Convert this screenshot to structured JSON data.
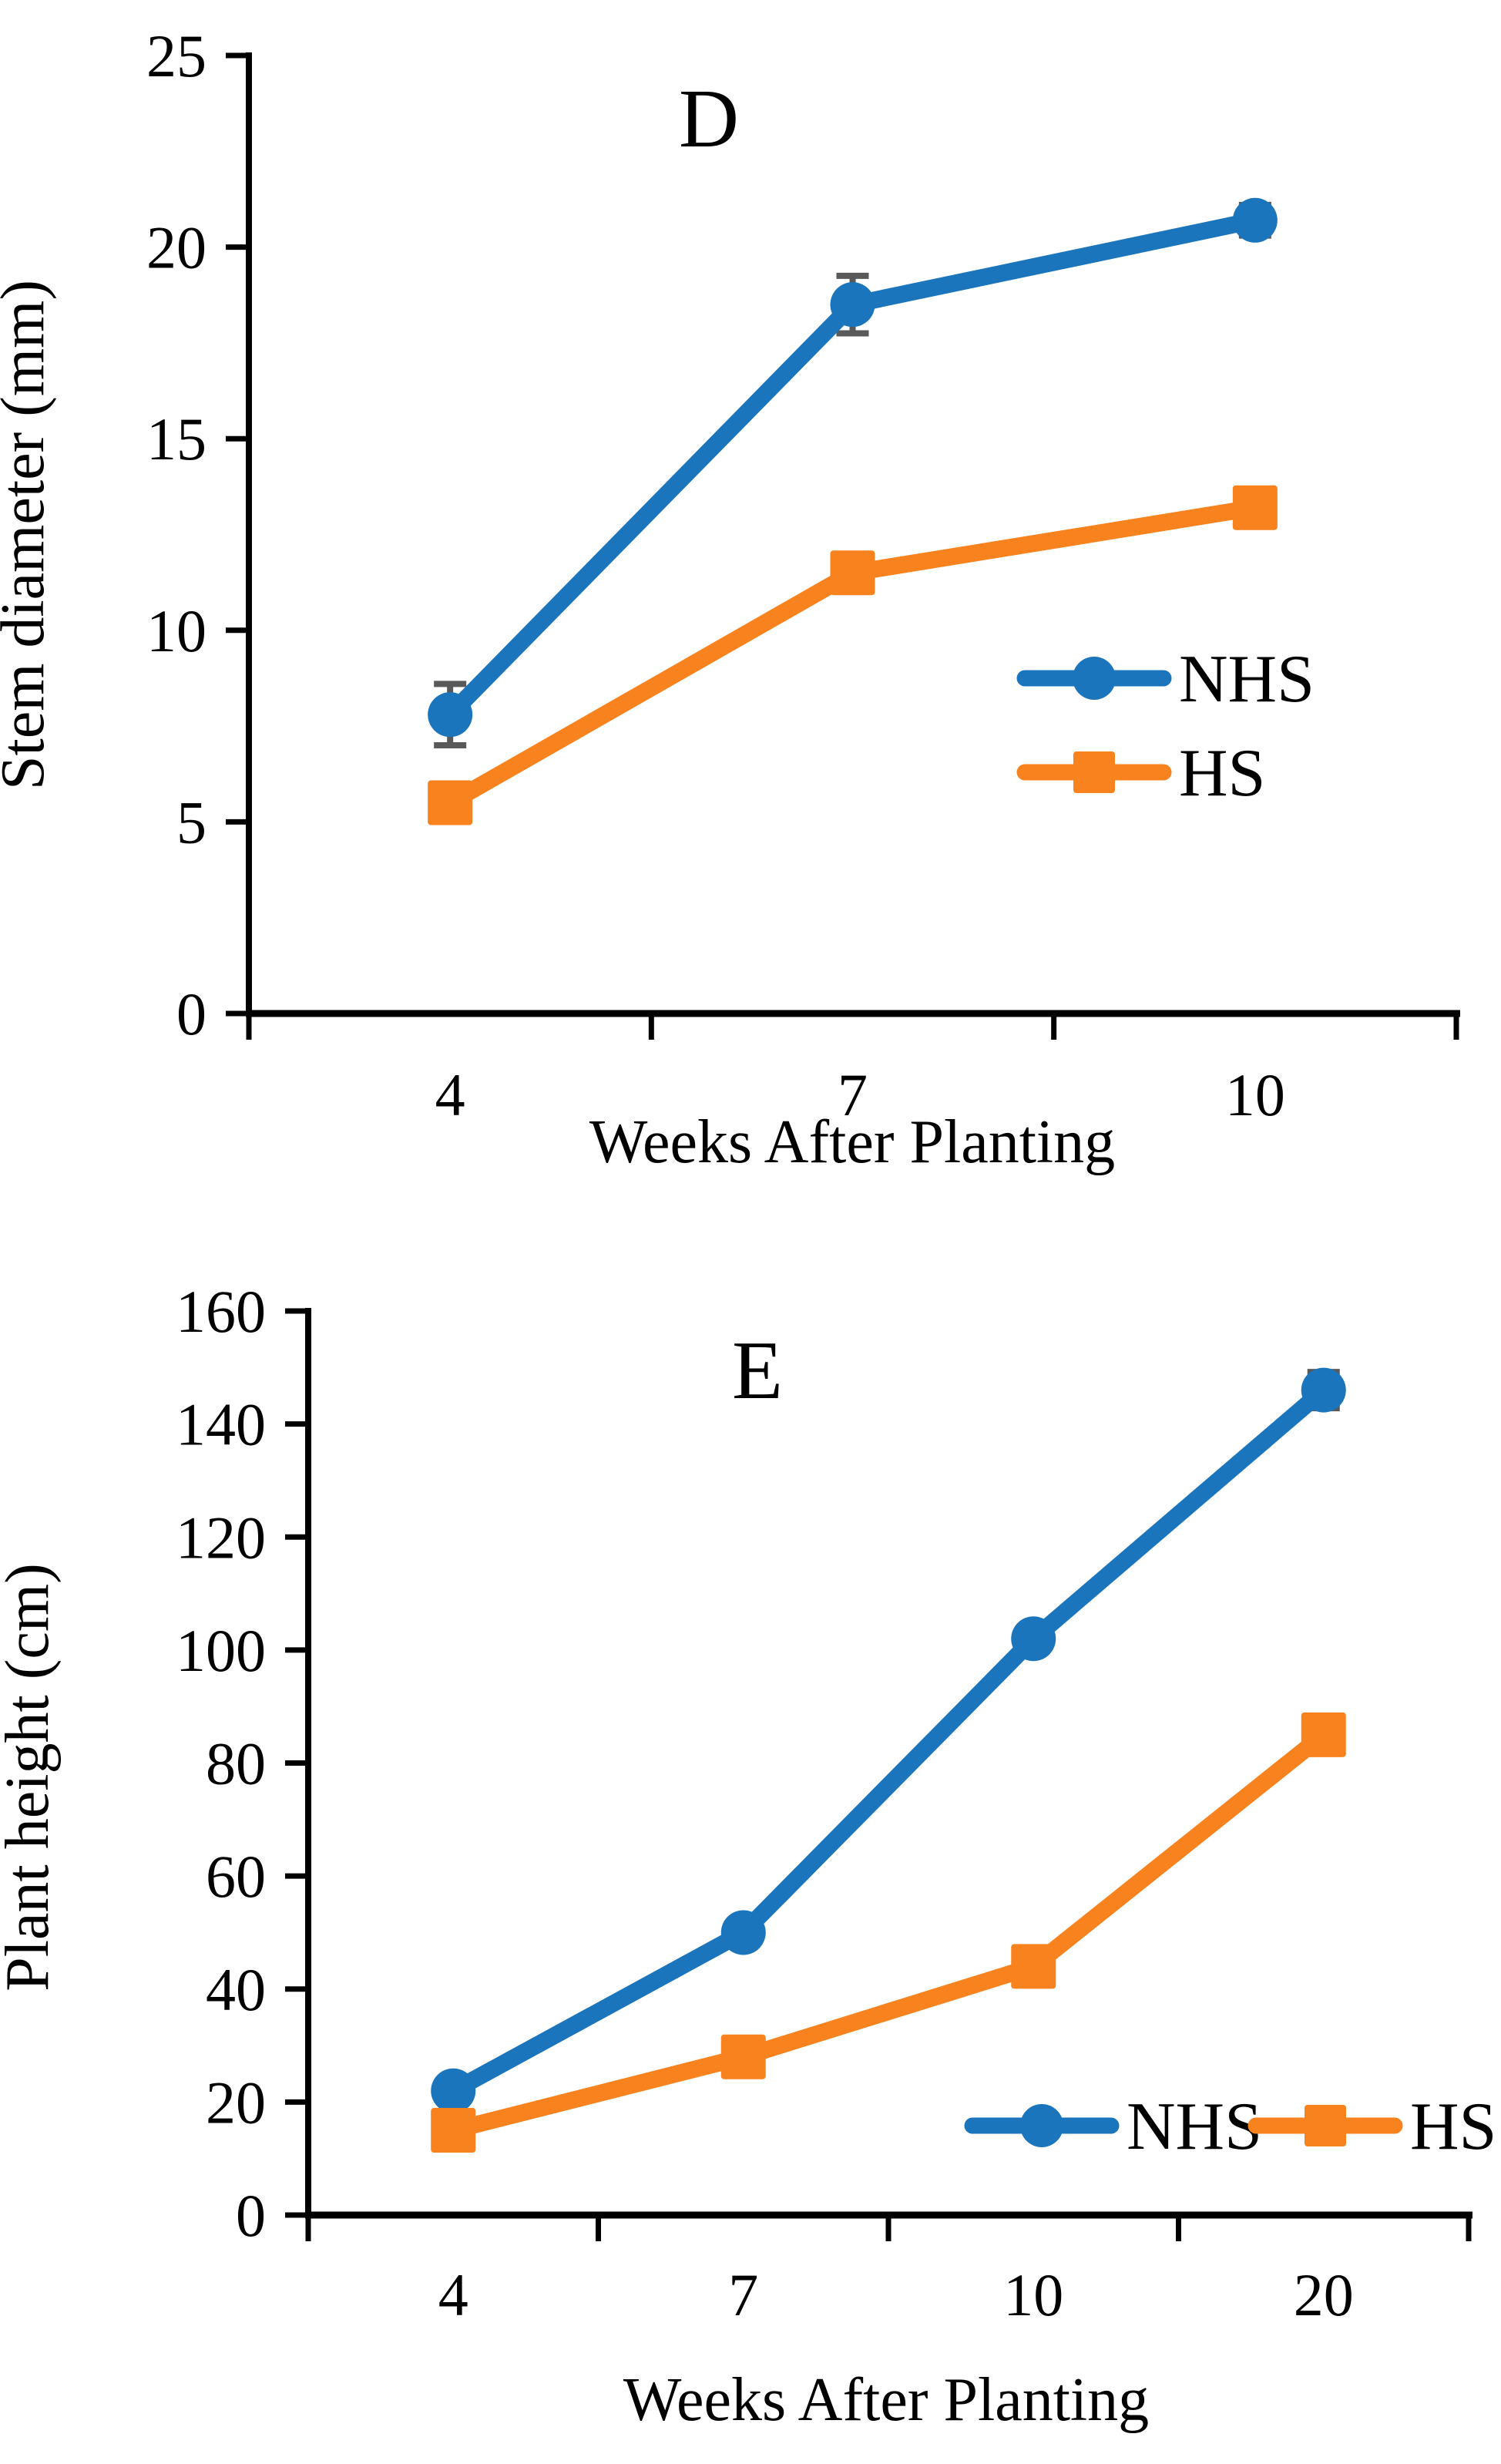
{
  "figure": {
    "panel_d_letter": "D",
    "panel_e_letter": "E"
  },
  "colors": {
    "nhs": "#1B75BC",
    "hs": "#F8821D",
    "error_bar": "#595959",
    "axis": "#000000",
    "background": "#FFFFFF"
  },
  "chart_data": [
    {
      "id": "D",
      "type": "line",
      "title": "D",
      "xlabel": "Weeks After Planting",
      "ylabel": "Stem diameter (mm)",
      "categories": [
        "4",
        "7",
        "10"
      ],
      "ylim": [
        0,
        25
      ],
      "ytick_step": 5,
      "yticks": [
        0,
        5,
        10,
        15,
        20,
        25
      ],
      "grid": false,
      "legend_position": "inside-right-middle",
      "legend_orientation": "vertical",
      "series": [
        {
          "name": "NHS",
          "marker": "circle",
          "color_key": "nhs",
          "values": [
            7.8,
            18.5,
            20.7
          ],
          "errors": [
            0.8,
            0.75,
            0.4
          ]
        },
        {
          "name": "HS",
          "marker": "square",
          "color_key": "hs",
          "values": [
            5.5,
            11.5,
            13.2
          ],
          "errors": [
            0,
            0,
            0
          ]
        }
      ]
    },
    {
      "id": "E",
      "type": "line",
      "title": "E",
      "xlabel": "Weeks After Planting",
      "ylabel": "Plant height (cm)",
      "categories": [
        "4",
        "7",
        "10",
        "20"
      ],
      "ylim": [
        0,
        160
      ],
      "ytick_step": 20,
      "yticks": [
        0,
        20,
        40,
        60,
        80,
        100,
        120,
        140,
        160
      ],
      "grid": false,
      "legend_position": "inside-bottom-right",
      "legend_orientation": "horizontal",
      "series": [
        {
          "name": "NHS",
          "marker": "circle",
          "color_key": "nhs",
          "values": [
            22,
            50,
            102,
            146
          ],
          "errors": [
            0,
            0,
            0,
            3.2
          ]
        },
        {
          "name": "HS",
          "marker": "square",
          "color_key": "hs",
          "values": [
            15,
            28,
            44,
            85
          ],
          "errors": [
            0,
            0,
            0,
            0
          ]
        }
      ]
    }
  ]
}
